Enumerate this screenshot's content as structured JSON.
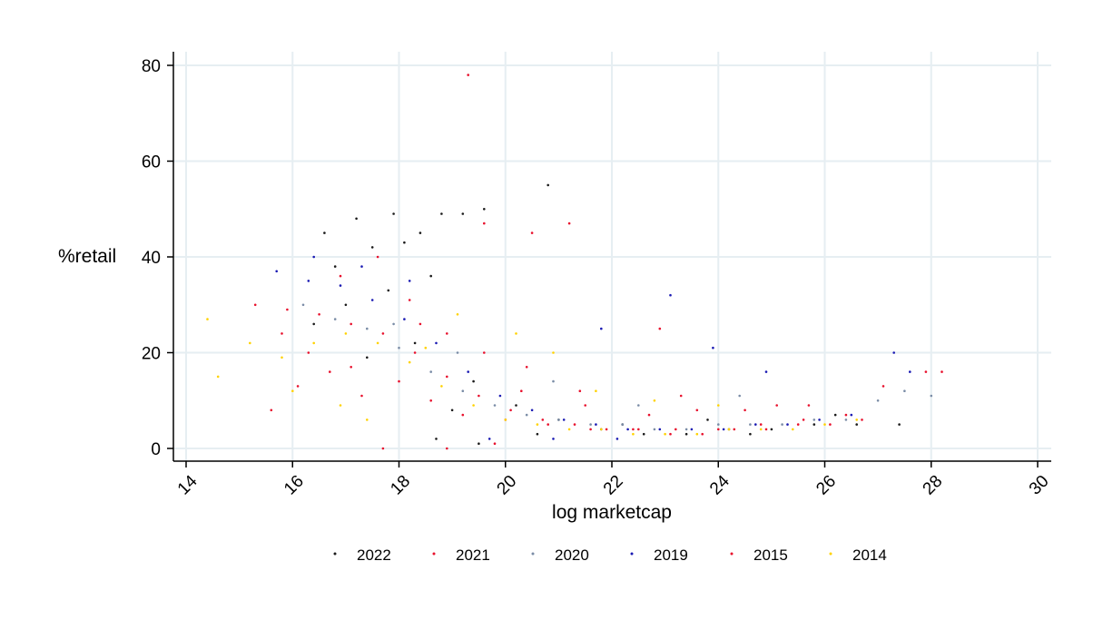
{
  "chart_data": {
    "type": "scatter",
    "xlabel": "log marketcap",
    "ylabel": "%retail",
    "xlim": [
      14,
      30
    ],
    "ylim": [
      0,
      80
    ],
    "x_ticks": [
      14,
      16,
      18,
      20,
      22,
      24,
      26,
      28,
      30
    ],
    "y_ticks": [
      0,
      20,
      40,
      60,
      80
    ],
    "grid": true,
    "legend_position": "bottom",
    "series": [
      {
        "name": "2022",
        "color": "#1a1a1a",
        "points": [
          [
            16.6,
            45
          ],
          [
            17.2,
            48
          ],
          [
            17.9,
            49
          ],
          [
            18.4,
            45
          ],
          [
            18.8,
            49
          ],
          [
            19.2,
            49
          ],
          [
            19.6,
            50
          ],
          [
            20.8,
            55
          ],
          [
            16.8,
            38
          ],
          [
            17.5,
            42
          ],
          [
            18.1,
            43
          ],
          [
            17.0,
            30
          ],
          [
            16.4,
            26
          ],
          [
            17.8,
            33
          ],
          [
            18.6,
            36
          ],
          [
            18.3,
            22
          ],
          [
            19.4,
            14
          ],
          [
            20.2,
            9
          ],
          [
            21.0,
            6
          ],
          [
            21.8,
            4
          ],
          [
            22.6,
            3
          ],
          [
            23.4,
            3
          ],
          [
            24.2,
            4
          ],
          [
            25.0,
            4
          ],
          [
            25.8,
            5
          ],
          [
            26.6,
            5
          ],
          [
            27.4,
            5
          ],
          [
            18.7,
            2
          ],
          [
            19.5,
            1
          ],
          [
            20.6,
            3
          ],
          [
            22.2,
            5
          ],
          [
            23.8,
            6
          ],
          [
            24.6,
            3
          ],
          [
            26.2,
            7
          ],
          [
            19.0,
            8
          ],
          [
            17.4,
            19
          ]
        ]
      },
      {
        "name": "2021",
        "color": "#e8112d",
        "points": [
          [
            19.3,
            78
          ],
          [
            19.6,
            47
          ],
          [
            20.5,
            45
          ],
          [
            21.2,
            47
          ],
          [
            16.9,
            36
          ],
          [
            17.6,
            40
          ],
          [
            18.2,
            31
          ],
          [
            18.9,
            24
          ],
          [
            15.8,
            24
          ],
          [
            16.3,
            20
          ],
          [
            17.1,
            17
          ],
          [
            18.0,
            14
          ],
          [
            18.6,
            10
          ],
          [
            19.2,
            7
          ],
          [
            20.0,
            6
          ],
          [
            20.8,
            5
          ],
          [
            21.6,
            4
          ],
          [
            22.4,
            4
          ],
          [
            23.2,
            4
          ],
          [
            24.0,
            4
          ],
          [
            24.8,
            5
          ],
          [
            25.6,
            6
          ],
          [
            26.4,
            7
          ],
          [
            27.1,
            13
          ],
          [
            27.9,
            16
          ],
          [
            28.2,
            16
          ],
          [
            22.9,
            25
          ],
          [
            20.4,
            17
          ],
          [
            21.4,
            12
          ],
          [
            23.6,
            8
          ],
          [
            25.1,
            9
          ],
          [
            17.7,
            0
          ],
          [
            18.9,
            0
          ],
          [
            19.8,
            1
          ]
        ]
      },
      {
        "name": "2020",
        "color": "#7a8ca6",
        "points": [
          [
            16.2,
            30
          ],
          [
            16.8,
            27
          ],
          [
            17.4,
            25
          ],
          [
            18.0,
            21
          ],
          [
            18.6,
            16
          ],
          [
            19.2,
            12
          ],
          [
            19.8,
            9
          ],
          [
            20.4,
            7
          ],
          [
            21.0,
            6
          ],
          [
            21.6,
            5
          ],
          [
            22.2,
            5
          ],
          [
            22.8,
            4
          ],
          [
            23.4,
            4
          ],
          [
            24.0,
            5
          ],
          [
            24.6,
            5
          ],
          [
            25.2,
            5
          ],
          [
            25.8,
            6
          ],
          [
            26.4,
            6
          ],
          [
            27.0,
            10
          ],
          [
            27.5,
            12
          ],
          [
            28.0,
            11
          ],
          [
            20.9,
            14
          ],
          [
            22.5,
            9
          ],
          [
            24.4,
            11
          ],
          [
            19.1,
            20
          ],
          [
            17.9,
            26
          ]
        ]
      },
      {
        "name": "2019",
        "color": "#1a1ab3",
        "points": [
          [
            15.7,
            37
          ],
          [
            16.3,
            35
          ],
          [
            16.9,
            34
          ],
          [
            17.5,
            31
          ],
          [
            18.1,
            27
          ],
          [
            18.7,
            22
          ],
          [
            19.3,
            16
          ],
          [
            19.9,
            11
          ],
          [
            20.5,
            8
          ],
          [
            21.1,
            6
          ],
          [
            21.7,
            5
          ],
          [
            22.3,
            4
          ],
          [
            22.9,
            4
          ],
          [
            23.5,
            4
          ],
          [
            24.1,
            4
          ],
          [
            24.7,
            5
          ],
          [
            25.3,
            5
          ],
          [
            25.9,
            6
          ],
          [
            26.5,
            7
          ],
          [
            23.1,
            32
          ],
          [
            21.8,
            25
          ],
          [
            23.9,
            21
          ],
          [
            24.9,
            16
          ],
          [
            27.3,
            20
          ],
          [
            27.6,
            16
          ],
          [
            18.2,
            35
          ],
          [
            17.3,
            38
          ],
          [
            16.4,
            40
          ],
          [
            19.7,
            2
          ],
          [
            20.9,
            2
          ],
          [
            22.1,
            2
          ]
        ]
      },
      {
        "name": "2015",
        "color": "#e8112d",
        "points": [
          [
            15.3,
            30
          ],
          [
            15.9,
            29
          ],
          [
            16.5,
            28
          ],
          [
            17.1,
            26
          ],
          [
            17.7,
            24
          ],
          [
            18.3,
            20
          ],
          [
            18.9,
            15
          ],
          [
            19.5,
            11
          ],
          [
            20.1,
            8
          ],
          [
            20.7,
            6
          ],
          [
            21.3,
            5
          ],
          [
            21.9,
            4
          ],
          [
            22.5,
            4
          ],
          [
            23.1,
            3
          ],
          [
            23.7,
            3
          ],
          [
            24.3,
            4
          ],
          [
            24.9,
            4
          ],
          [
            25.5,
            5
          ],
          [
            26.1,
            5
          ],
          [
            26.7,
            6
          ],
          [
            15.6,
            8
          ],
          [
            16.1,
            13
          ],
          [
            16.7,
            16
          ],
          [
            17.3,
            11
          ],
          [
            18.4,
            26
          ],
          [
            19.6,
            20
          ],
          [
            20.3,
            12
          ],
          [
            21.5,
            9
          ],
          [
            22.7,
            7
          ],
          [
            23.3,
            11
          ],
          [
            24.5,
            8
          ],
          [
            25.7,
            9
          ]
        ]
      },
      {
        "name": "2014",
        "color": "#ffd200",
        "points": [
          [
            14.4,
            27
          ],
          [
            14.6,
            15
          ],
          [
            15.2,
            22
          ],
          [
            15.8,
            19
          ],
          [
            16.4,
            22
          ],
          [
            17.0,
            24
          ],
          [
            17.6,
            22
          ],
          [
            18.2,
            18
          ],
          [
            18.8,
            13
          ],
          [
            19.4,
            9
          ],
          [
            20.0,
            6
          ],
          [
            20.6,
            5
          ],
          [
            21.2,
            4
          ],
          [
            21.8,
            4
          ],
          [
            22.4,
            3
          ],
          [
            23.0,
            3
          ],
          [
            23.6,
            3
          ],
          [
            24.2,
            4
          ],
          [
            24.8,
            4
          ],
          [
            25.4,
            4
          ],
          [
            26.0,
            5
          ],
          [
            26.6,
            6
          ],
          [
            16.0,
            12
          ],
          [
            16.9,
            9
          ],
          [
            17.4,
            6
          ],
          [
            18.5,
            21
          ],
          [
            19.1,
            28
          ],
          [
            20.2,
            24
          ],
          [
            20.9,
            20
          ],
          [
            21.7,
            12
          ],
          [
            22.8,
            10
          ],
          [
            24.0,
            9
          ]
        ]
      }
    ]
  }
}
